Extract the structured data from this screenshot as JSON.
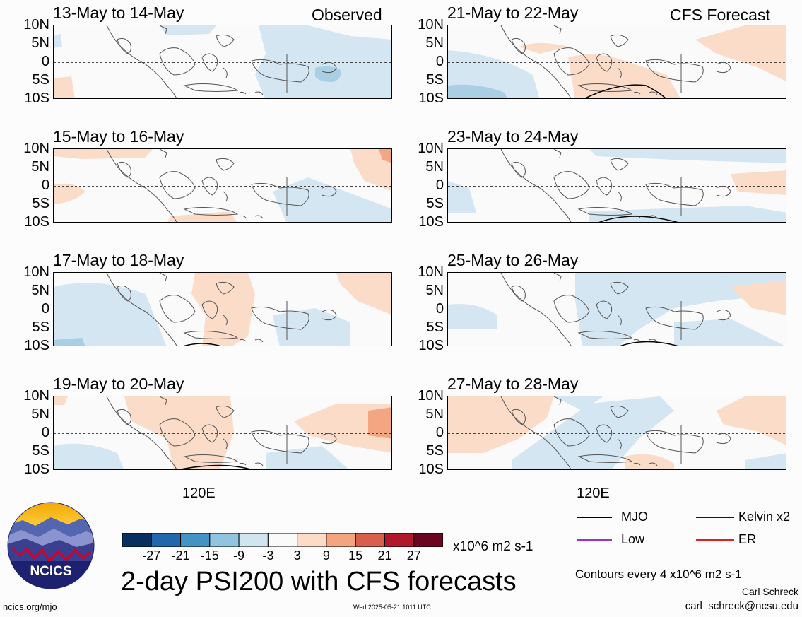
{
  "panels": [
    {
      "title": "13-May to 14-May",
      "tag": "Observed",
      "mjo": false,
      "variant": 0
    },
    {
      "title": "15-May to 16-May",
      "tag": "",
      "mjo": false,
      "variant": 1
    },
    {
      "title": "17-May to 18-May",
      "tag": "",
      "mjo": true,
      "variant": 2
    },
    {
      "title": "19-May to 20-May",
      "tag": "",
      "mjo": true,
      "variant": 3
    },
    {
      "title": "21-May to 22-May",
      "tag": "CFS Forecast",
      "mjo": true,
      "variant": 4
    },
    {
      "title": "23-May to 24-May",
      "tag": "",
      "mjo": true,
      "variant": 5
    },
    {
      "title": "25-May to 26-May",
      "tag": "",
      "mjo": true,
      "variant": 6
    },
    {
      "title": "27-May to 28-May",
      "tag": "",
      "mjo": false,
      "variant": 7
    }
  ],
  "lat_labels": [
    "10N",
    "5N",
    "0",
    "5S",
    "10S"
  ],
  "lon_label": "120E",
  "colorbar": {
    "colors": [
      "#08305e",
      "#2266ac",
      "#4393c4",
      "#91c4de",
      "#d1e5f0",
      "#fafafa",
      "#fcdbc7",
      "#f3a481",
      "#d6604c",
      "#b2182b",
      "#6a0620"
    ],
    "ticks": [
      "-27",
      "-21",
      "-15",
      "-9",
      "-3",
      "3",
      "9",
      "15",
      "21",
      "27"
    ],
    "units": "x10^6 m2 s-1"
  },
  "main_title": "2-day PSI200 with CFS forecasts",
  "legend": [
    {
      "label": "MJO",
      "color": "#000000"
    },
    {
      "label": "Kelvin x2",
      "color": "#0000cc"
    },
    {
      "label": "Low",
      "color": "#9933cc"
    },
    {
      "label": "ER",
      "color": "#e02020"
    }
  ],
  "contour_note": "Contours every 4 x10^6 m2 s-1",
  "author": "Carl Schreck",
  "email": "carl_schreck@ncsu.edu",
  "site": "ncics.org/mjo",
  "timestamp": "Wed 2025-05-21 1011 UTC",
  "logo_text": "NCICS"
}
